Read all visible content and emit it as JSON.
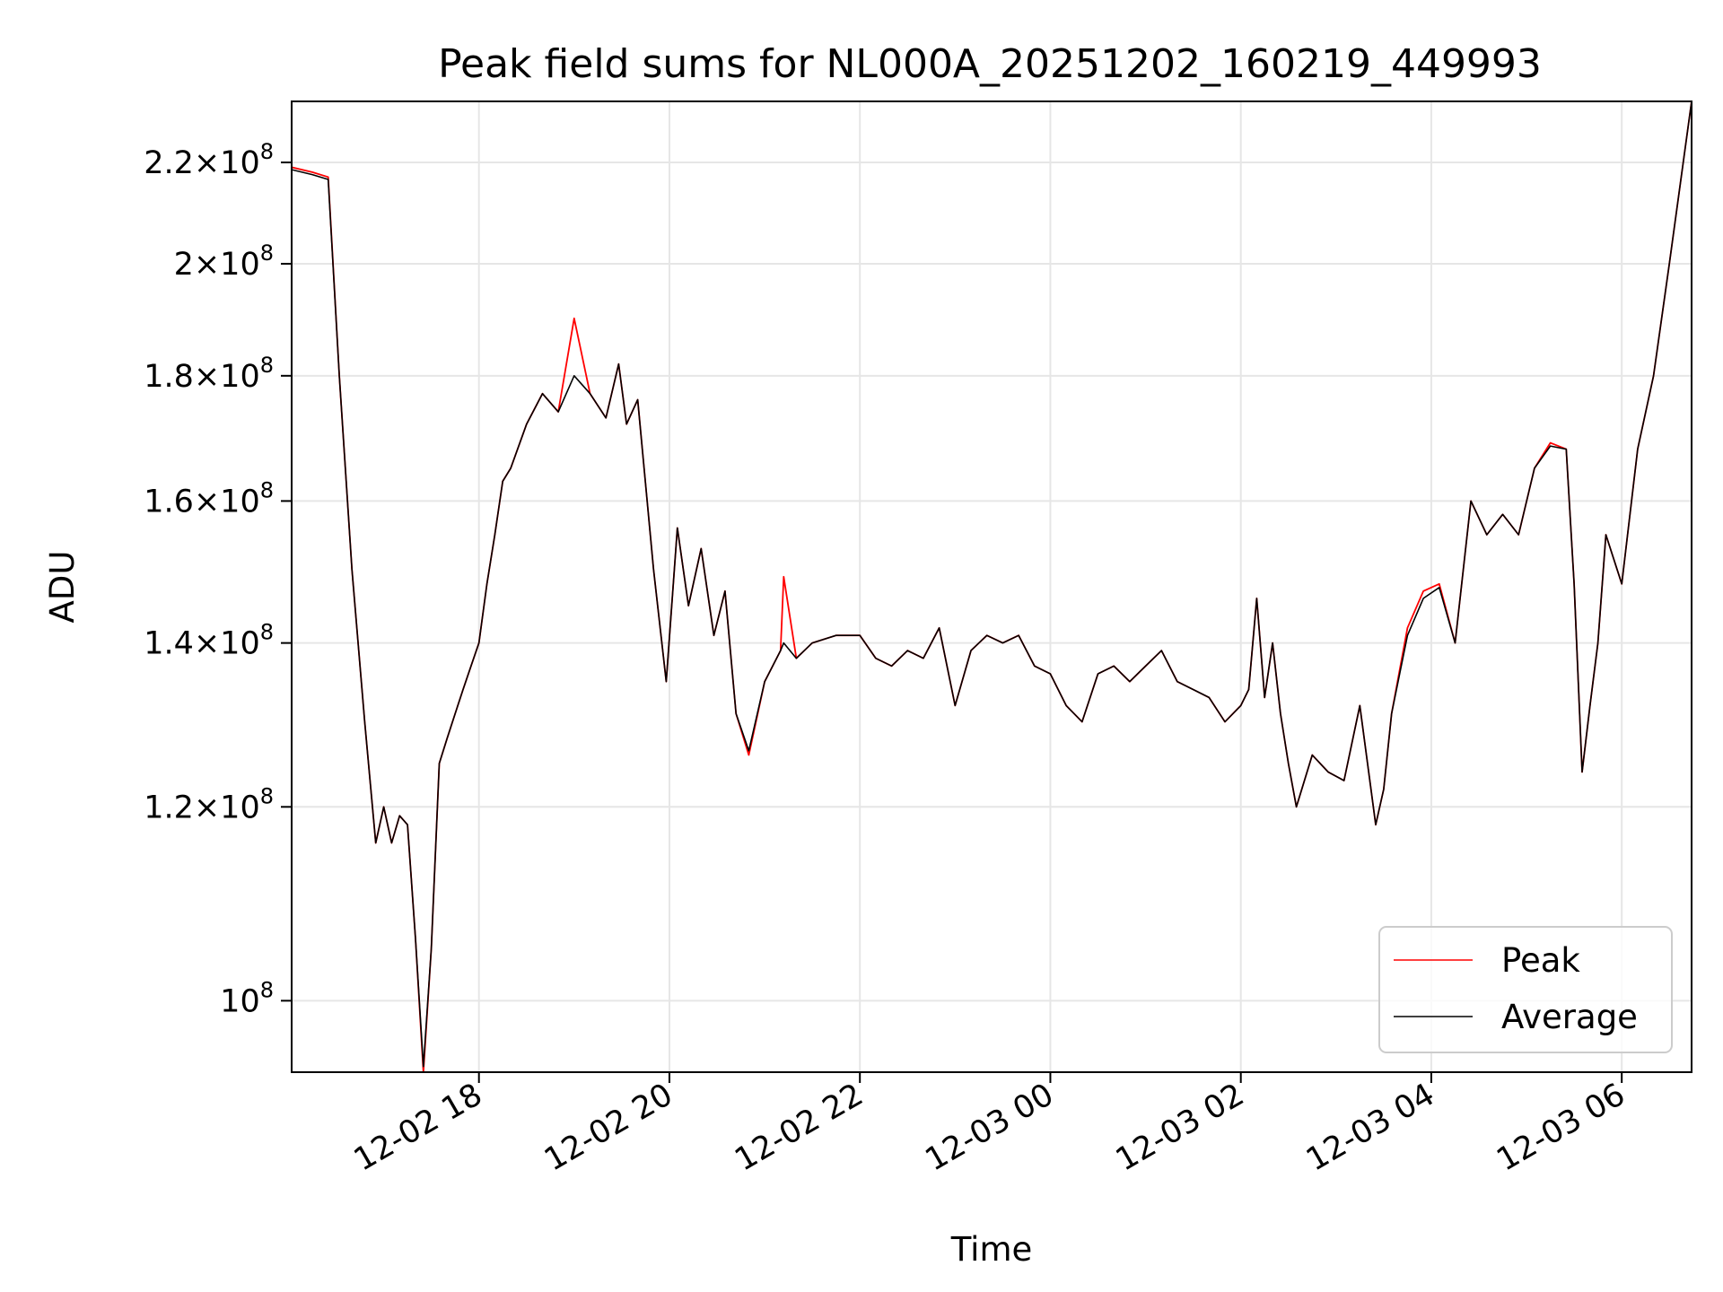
{
  "chart_data": {
    "type": "line",
    "title": "Peak field sums for NL000A_20251202_160219_449993",
    "xlabel": "Time",
    "ylabel": "ADU",
    "yscale": "log",
    "grid": true,
    "legend_position": "lower-right",
    "xlim": [
      "2025-12-02 16:02",
      "2025-12-03 06:44"
    ],
    "ylim": [
      93500000,
      233000000
    ],
    "x_ticks": [
      {
        "label": "12-02 18",
        "value": "2025-12-02 18:00"
      },
      {
        "label": "12-02 20",
        "value": "2025-12-02 20:00"
      },
      {
        "label": "12-02 22",
        "value": "2025-12-02 22:00"
      },
      {
        "label": "12-03 00",
        "value": "2025-12-03 00:00"
      },
      {
        "label": "12-03 02",
        "value": "2025-12-03 02:00"
      },
      {
        "label": "12-03 04",
        "value": "2025-12-03 04:00"
      },
      {
        "label": "12-03 06",
        "value": "2025-12-03 06:00"
      }
    ],
    "y_ticks": [
      {
        "mantissa": "",
        "exponent": "8",
        "value": 100000000
      },
      {
        "mantissa": "1.2",
        "exponent": "8",
        "value": 120000000
      },
      {
        "mantissa": "1.4",
        "exponent": "8",
        "value": 140000000
      },
      {
        "mantissa": "1.6",
        "exponent": "8",
        "value": 160000000
      },
      {
        "mantissa": "1.8",
        "exponent": "8",
        "value": 180000000
      },
      {
        "mantissa": "2",
        "exponent": "8",
        "value": 200000000
      },
      {
        "mantissa": "2.2",
        "exponent": "8",
        "value": 220000000
      }
    ],
    "x": [
      "2025-12-02 16:02",
      "2025-12-02 16:15",
      "2025-12-02 16:25",
      "2025-12-02 16:32",
      "2025-12-02 16:40",
      "2025-12-02 16:48",
      "2025-12-02 16:55",
      "2025-12-02 17:00",
      "2025-12-02 17:05",
      "2025-12-02 17:10",
      "2025-12-02 17:15",
      "2025-12-02 17:20",
      "2025-12-02 17:25",
      "2025-12-02 17:30",
      "2025-12-02 17:35",
      "2025-12-02 17:40",
      "2025-12-02 17:45",
      "2025-12-02 17:50",
      "2025-12-02 17:55",
      "2025-12-02 18:00",
      "2025-12-02 18:05",
      "2025-12-02 18:10",
      "2025-12-02 18:15",
      "2025-12-02 18:20",
      "2025-12-02 18:30",
      "2025-12-02 18:40",
      "2025-12-02 18:50",
      "2025-12-02 19:00",
      "2025-12-02 19:10",
      "2025-12-02 19:20",
      "2025-12-02 19:28",
      "2025-12-02 19:33",
      "2025-12-02 19:40",
      "2025-12-02 19:50",
      "2025-12-02 19:58",
      "2025-12-02 20:05",
      "2025-12-02 20:12",
      "2025-12-02 20:20",
      "2025-12-02 20:28",
      "2025-12-02 20:35",
      "2025-12-02 20:42",
      "2025-12-02 20:50",
      "2025-12-02 21:00",
      "2025-12-02 21:10",
      "2025-12-02 21:12",
      "2025-12-02 21:20",
      "2025-12-02 21:30",
      "2025-12-02 21:45",
      "2025-12-02 22:00",
      "2025-12-02 22:10",
      "2025-12-02 22:20",
      "2025-12-02 22:30",
      "2025-12-02 22:40",
      "2025-12-02 22:50",
      "2025-12-02 23:00",
      "2025-12-02 23:10",
      "2025-12-02 23:20",
      "2025-12-02 23:30",
      "2025-12-02 23:40",
      "2025-12-02 23:50",
      "2025-12-03 00:00",
      "2025-12-03 00:10",
      "2025-12-03 00:20",
      "2025-12-03 00:30",
      "2025-12-03 00:40",
      "2025-12-03 00:50",
      "2025-12-03 01:00",
      "2025-12-03 01:10",
      "2025-12-03 01:20",
      "2025-12-03 01:30",
      "2025-12-03 01:40",
      "2025-12-03 01:50",
      "2025-12-03 02:00",
      "2025-12-03 02:05",
      "2025-12-03 02:10",
      "2025-12-03 02:15",
      "2025-12-03 02:20",
      "2025-12-03 02:25",
      "2025-12-03 02:30",
      "2025-12-03 02:35",
      "2025-12-03 02:45",
      "2025-12-03 02:55",
      "2025-12-03 03:05",
      "2025-12-03 03:15",
      "2025-12-03 03:25",
      "2025-12-03 03:30",
      "2025-12-03 03:35",
      "2025-12-03 03:45",
      "2025-12-03 03:55",
      "2025-12-03 04:05",
      "2025-12-03 04:15",
      "2025-12-03 04:25",
      "2025-12-03 04:35",
      "2025-12-03 04:45",
      "2025-12-03 04:55",
      "2025-12-03 05:05",
      "2025-12-03 05:15",
      "2025-12-03 05:25",
      "2025-12-03 05:30",
      "2025-12-03 05:35",
      "2025-12-03 05:40",
      "2025-12-03 05:45",
      "2025-12-03 05:50",
      "2025-12-03 06:00",
      "2025-12-03 06:10",
      "2025-12-03 06:20",
      "2025-12-03 06:30",
      "2025-12-03 06:44"
    ],
    "series": [
      {
        "name": "Peak",
        "color": "#ff0000",
        "values": [
          219000000,
          218000000,
          217000000,
          180000000,
          150000000,
          130000000,
          116000000,
          120000000,
          116000000,
          119000000,
          118000000,
          106000000,
          93500000,
          105000000,
          125000000,
          128000000,
          131000000,
          134000000,
          137000000,
          140000000,
          148000000,
          155000000,
          163000000,
          165000000,
          172000000,
          177000000,
          174000000,
          190000000,
          177000000,
          173000000,
          182000000,
          172000000,
          176000000,
          150000000,
          135000000,
          156000000,
          145000000,
          153000000,
          141000000,
          147000000,
          131000000,
          126000000,
          135000000,
          139000000,
          149000000,
          138000000,
          140000000,
          141000000,
          141000000,
          138000000,
          137000000,
          139000000,
          138000000,
          142000000,
          132000000,
          139000000,
          141000000,
          140000000,
          141000000,
          137000000,
          136000000,
          132000000,
          130000000,
          136000000,
          137000000,
          135000000,
          137000000,
          139000000,
          135000000,
          134000000,
          133000000,
          130000000,
          132000000,
          134000000,
          146000000,
          133000000,
          140000000,
          131000000,
          125000000,
          120000000,
          126000000,
          124000000,
          123000000,
          132000000,
          118000000,
          122000000,
          131000000,
          142000000,
          147000000,
          148000000,
          140000000,
          160000000,
          155000000,
          158000000,
          155000000,
          165000000,
          169000000,
          168000000,
          148000000,
          124000000,
          132000000,
          140000000,
          155000000,
          148000000,
          168000000,
          180000000,
          200000000,
          233000000
        ]
      },
      {
        "name": "Average",
        "color": "#000000",
        "values": [
          218500000,
          217500000,
          216500000,
          180000000,
          150000000,
          130000000,
          116000000,
          120000000,
          116000000,
          119000000,
          118000000,
          106000000,
          94000000,
          105000000,
          125000000,
          128000000,
          131000000,
          134000000,
          137000000,
          140000000,
          148000000,
          155000000,
          163000000,
          165000000,
          172000000,
          177000000,
          174000000,
          180000000,
          177000000,
          173000000,
          182000000,
          172000000,
          176000000,
          150000000,
          135000000,
          156000000,
          145000000,
          153000000,
          141000000,
          147000000,
          131000000,
          126500000,
          135000000,
          139000000,
          140000000,
          138000000,
          140000000,
          141000000,
          141000000,
          138000000,
          137000000,
          139000000,
          138000000,
          142000000,
          132000000,
          139000000,
          141000000,
          140000000,
          141000000,
          137000000,
          136000000,
          132000000,
          130000000,
          136000000,
          137000000,
          135000000,
          137000000,
          139000000,
          135000000,
          134000000,
          133000000,
          130000000,
          132000000,
          134000000,
          146000000,
          133000000,
          140000000,
          131000000,
          125000000,
          120000000,
          126000000,
          124000000,
          123000000,
          132000000,
          118000000,
          122000000,
          131000000,
          141000000,
          146000000,
          147500000,
          140000000,
          160000000,
          155000000,
          158000000,
          155000000,
          165000000,
          168500000,
          168000000,
          148000000,
          124000000,
          132000000,
          140000000,
          155000000,
          148000000,
          168000000,
          180000000,
          200000000,
          233000000
        ]
      }
    ]
  }
}
